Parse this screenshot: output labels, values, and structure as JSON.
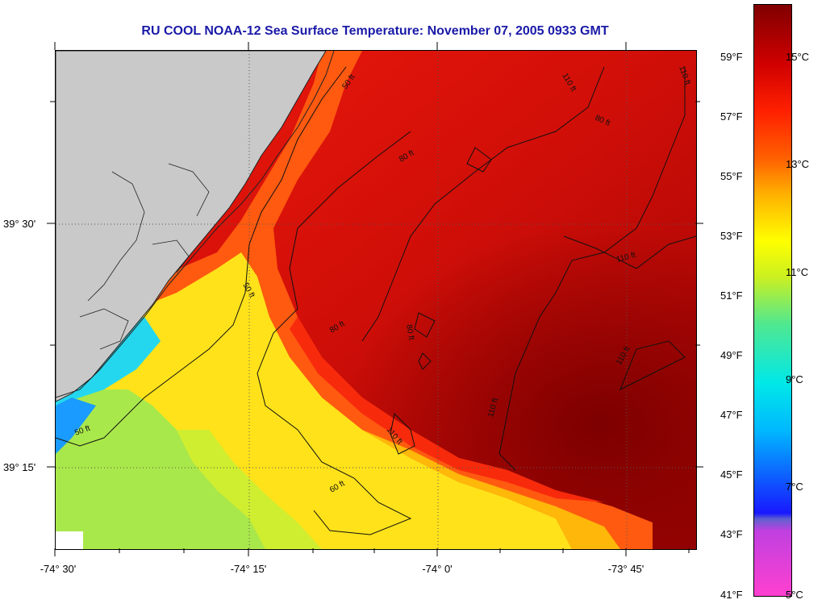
{
  "title": "RU COOL  NOAA-12  Sea Surface Temperature:  November 07, 2005 0933 GMT",
  "latitude_labels": [
    "39° 30'",
    "39° 15'"
  ],
  "longitude_labels": [
    "-74° 30'",
    "-74° 15'",
    "-74° 0'",
    "-73° 45'"
  ],
  "fahrenheit_labels": [
    "59°F",
    "57°F",
    "55°F",
    "53°F",
    "51°F",
    "49°F",
    "47°F",
    "45°F",
    "43°F",
    "41°F"
  ],
  "celsius_labels": [
    "15°C",
    "13°C",
    "11°C",
    "9°C",
    "7°C",
    "5°C"
  ],
  "contour_labels": [
    "50 ft",
    "60 ft",
    "80 ft",
    "110 ft"
  ],
  "colors": {
    "title": "#1a1aa8",
    "land": "#c9c9c9",
    "scale": [
      "#ff40d0",
      "#c040e0",
      "#2020ff",
      "#00c8ff",
      "#40e0a0",
      "#ffff00",
      "#ff9000",
      "#ff2000",
      "#b00000",
      "#800000"
    ]
  }
}
